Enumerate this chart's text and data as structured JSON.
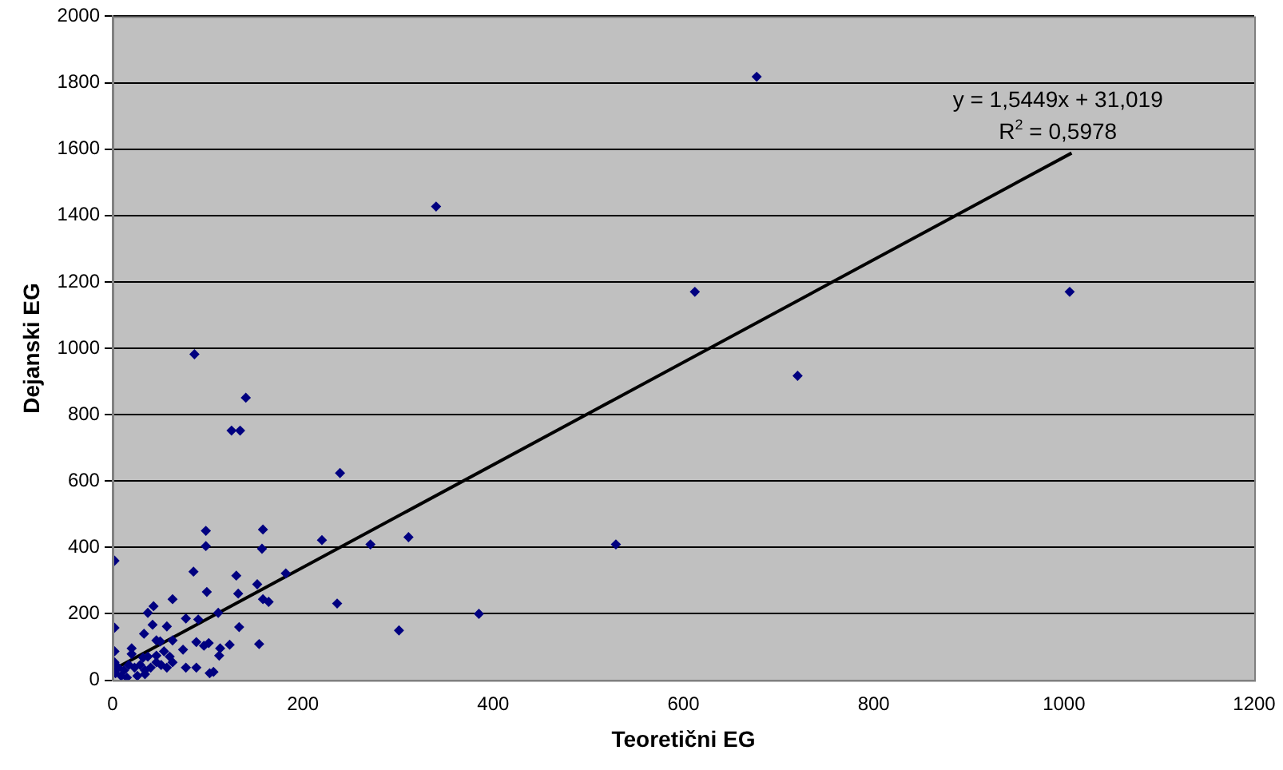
{
  "chart_data": {
    "type": "scatter",
    "xlabel": "Teoretični EG",
    "ylabel": "Dejanski EG",
    "xlim": [
      0,
      1200
    ],
    "xticks": [
      0,
      200,
      400,
      600,
      800,
      1000,
      1200
    ],
    "ylim": [
      0,
      2000
    ],
    "yticks": [
      0,
      200,
      400,
      600,
      800,
      1000,
      1200,
      1400,
      1600,
      1800,
      2000
    ],
    "grid": "y",
    "legend": false,
    "annotations": [
      "y = 1,5449x + 31,019",
      "R$^{2}$ = 0,5978"
    ],
    "series": [
      {
        "marker": "diamond",
        "color": "#000080",
        "x": [
          677,
          612,
          1006,
          720,
          340,
          529,
          385,
          301,
          311,
          271,
          239,
          236,
          220,
          86,
          140,
          125,
          134,
          98,
          98,
          158,
          157,
          2,
          85,
          130,
          182,
          152,
          132,
          99,
          158,
          164,
          63,
          37,
          43,
          111,
          2,
          77,
          90,
          57,
          42,
          33,
          133,
          46,
          50,
          63,
          2,
          74,
          88,
          96,
          101,
          112,
          113,
          123,
          154,
          20,
          20,
          77,
          88,
          102,
          106,
          2,
          6,
          12,
          17,
          23,
          29,
          34,
          40,
          46,
          51,
          57,
          63,
          9,
          15,
          26,
          34,
          3,
          46,
          54,
          60,
          37,
          32
        ],
        "values": [
          1818,
          1170,
          1170,
          917,
          1427,
          409,
          200,
          150,
          431,
          409,
          624,
          231,
          422,
          982,
          851,
          752,
          752,
          450,
          404,
          454,
          396,
          360,
          327,
          315,
          322,
          289,
          261,
          266,
          244,
          236,
          244,
          203,
          223,
          203,
          158,
          186,
          183,
          162,
          167,
          140,
          160,
          120,
          117,
          120,
          87,
          92,
          115,
          104,
          112,
          74,
          96,
          107,
          109,
          96,
          79,
          38,
          38,
          21,
          25,
          54,
          38,
          30,
          46,
          38,
          46,
          30,
          38,
          54,
          46,
          38,
          54,
          13,
          8,
          13,
          18,
          21,
          74,
          87,
          71,
          71,
          68
        ]
      },
      {
        "type": "line",
        "marker": "none",
        "color": "#000000",
        "x": [
          0,
          1008
        ],
        "values": [
          31,
          1588
        ]
      }
    ]
  }
}
